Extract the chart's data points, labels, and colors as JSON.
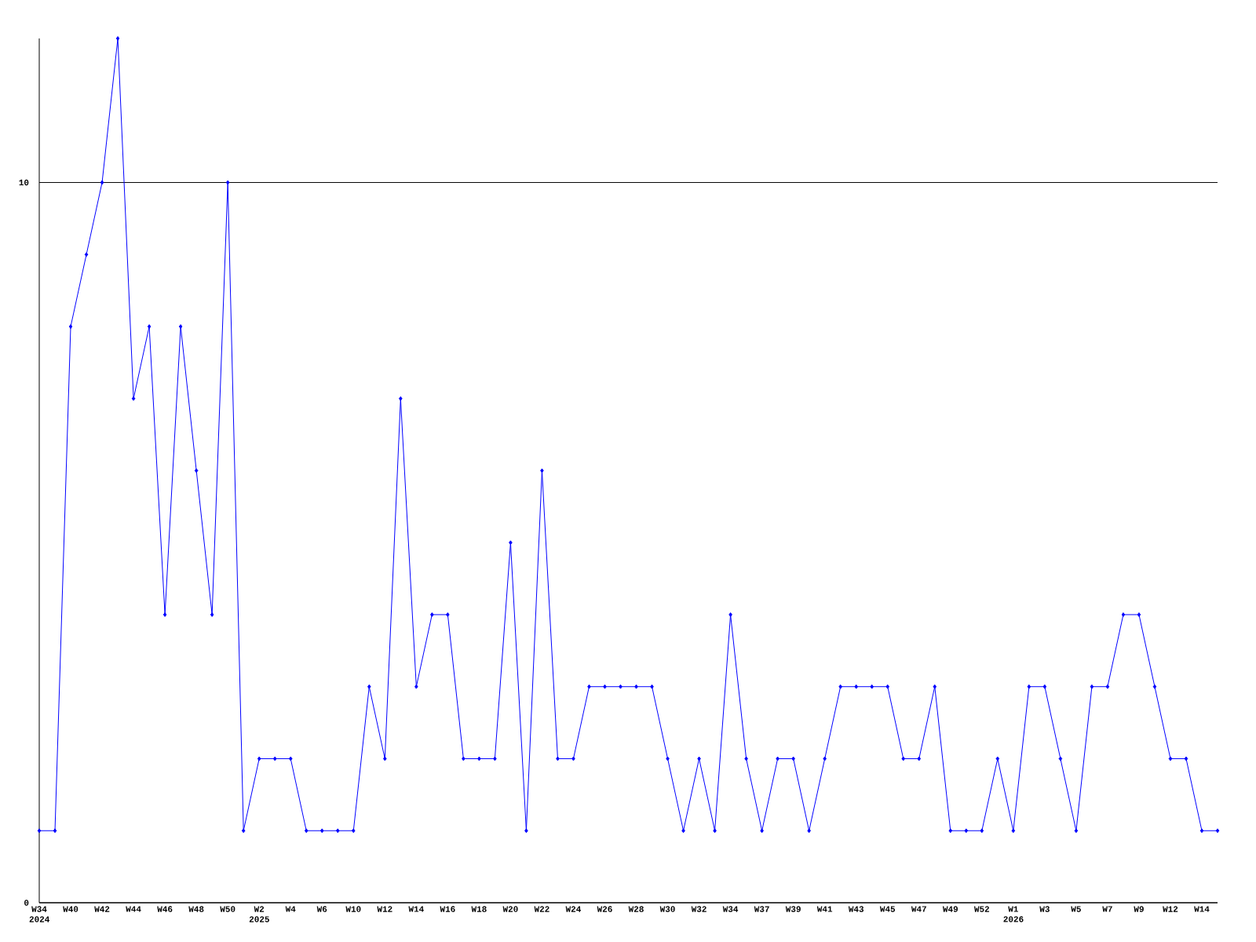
{
  "chart_data": {
    "type": "line",
    "categories": [
      "W34 2024",
      null,
      "W40",
      null,
      "W42",
      null,
      "W44",
      null,
      "W46",
      null,
      "W48",
      null,
      "W50",
      null,
      "W2 2025",
      null,
      "W4",
      null,
      "W6",
      null,
      "W10",
      null,
      "W12",
      null,
      "W14",
      null,
      "W16",
      null,
      "W18",
      null,
      "W20",
      null,
      "W22",
      null,
      "W24",
      null,
      "W26",
      null,
      "W28",
      null,
      "W30",
      null,
      "W32",
      null,
      "W34",
      null,
      "W37",
      null,
      "W39",
      null,
      "W41",
      null,
      "W43",
      null,
      "W45",
      null,
      "W47",
      null,
      "W49",
      null,
      "W52",
      null,
      "W1 2026",
      null,
      "W3",
      null,
      "W5",
      null,
      "W7",
      null,
      "W9",
      null,
      "W12",
      null,
      "W14",
      null
    ],
    "values": [
      1,
      1,
      8,
      9,
      10,
      12,
      7,
      8,
      4,
      8,
      6,
      4,
      10,
      1,
      2,
      2,
      2,
      1,
      1,
      1,
      1,
      3,
      2,
      7,
      3,
      4,
      4,
      2,
      2,
      2,
      5,
      1,
      6,
      2,
      2,
      3,
      3,
      3,
      3,
      3,
      2,
      1,
      2,
      1,
      4,
      2,
      1,
      2,
      2,
      1,
      2,
      3,
      3,
      3,
      3,
      2,
      2,
      3,
      1,
      1,
      1,
      2,
      1,
      3,
      3,
      2,
      1,
      3,
      3,
      4,
      4,
      3,
      2,
      2,
      1,
      1
    ],
    "color": "#0000ff",
    "marker": "diamond",
    "line_style": "solid",
    "ylim": [
      0,
      12
    ],
    "yticks": [
      0,
      10
    ],
    "grid": "y"
  }
}
